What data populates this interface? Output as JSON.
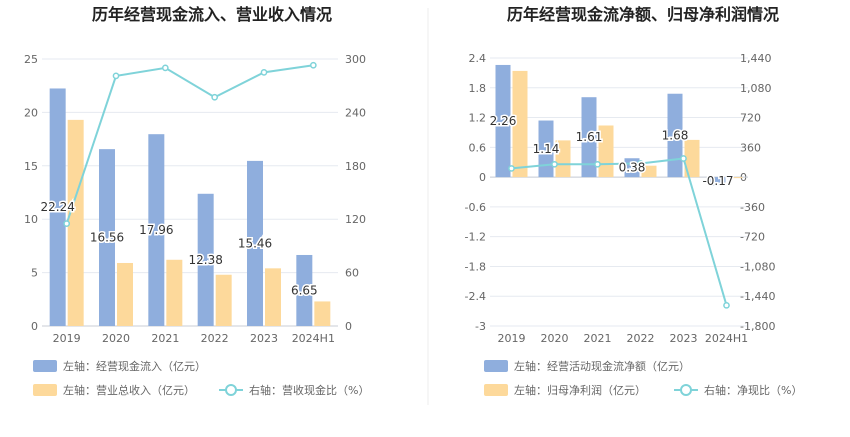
{
  "colors": {
    "left_bar": "#8FAEDD",
    "right_bar": "#FDD99B",
    "line": "#7FD3D9",
    "grid": "#E6EAF0",
    "axis_text": "#666666",
    "title": "#222222",
    "divider": "#EEEEEE"
  },
  "chart_data": [
    {
      "type": "bar+line",
      "title": "历年经营现金流入、营业收入情况",
      "categories": [
        "2019",
        "2020",
        "2021",
        "2022",
        "2023",
        "2024H1"
      ],
      "y_left": {
        "ticks": [
          0,
          5,
          10,
          15,
          20,
          25
        ],
        "lim": [
          0,
          25
        ]
      },
      "y_right": {
        "ticks": [
          0,
          60,
          120,
          180,
          240,
          300
        ],
        "lim": [
          0,
          300
        ]
      },
      "series": [
        {
          "name": "左轴：经营现金流入（亿元）",
          "axis": "left",
          "kind": "bar",
          "values": [
            22.24,
            16.56,
            17.96,
            12.38,
            15.46,
            6.65
          ],
          "labels": [
            "22.24",
            "16.56",
            "17.96",
            "12.38",
            "15.46",
            "6.65"
          ]
        },
        {
          "name": "左轴：营业总收入（亿元）",
          "axis": "left",
          "kind": "bar",
          "values": [
            19.3,
            5.9,
            6.2,
            4.8,
            5.4,
            2.3
          ]
        },
        {
          "name": "右轴：营收现金比（%）",
          "axis": "right",
          "kind": "line",
          "values": [
            115,
            281,
            290,
            257,
            285,
            293
          ]
        }
      ]
    },
    {
      "type": "bar+line",
      "title": "历年经营现金流净额、归母净利润情况",
      "categories": [
        "2019",
        "2020",
        "2021",
        "2022",
        "2023",
        "2024H1"
      ],
      "y_left": {
        "ticks": [
          "2.4",
          "1.8",
          "1.2",
          "0.6",
          "0",
          "-0.6",
          "-1.2",
          "-1.8",
          "-2.4",
          "-3"
        ],
        "lim": [
          -3,
          2.4
        ]
      },
      "y_right": {
        "ticks": [
          "1,440",
          "1,080",
          "720",
          "360",
          "0",
          "-360",
          "-720",
          "-1,080",
          "-1,440",
          "-1,800"
        ],
        "lim": [
          -1800,
          1440
        ]
      },
      "series": [
        {
          "name": "左轴：经营活动现金流净额（亿元）",
          "axis": "left",
          "kind": "bar",
          "values": [
            2.26,
            1.14,
            1.61,
            0.38,
            1.68,
            -0.17
          ],
          "labels": [
            "2.26",
            "1.14",
            "1.61",
            "0.38",
            "1.68",
            "-0.17"
          ]
        },
        {
          "name": "左轴：归母净利润（亿元）",
          "axis": "left",
          "kind": "bar",
          "values": [
            2.14,
            0.74,
            1.04,
            0.23,
            0.75,
            -0.02
          ]
        },
        {
          "name": "右轴：净现比（%）",
          "axis": "right",
          "kind": "line",
          "values": [
            105,
            155,
            155,
            165,
            225,
            -1550
          ]
        }
      ]
    }
  ]
}
